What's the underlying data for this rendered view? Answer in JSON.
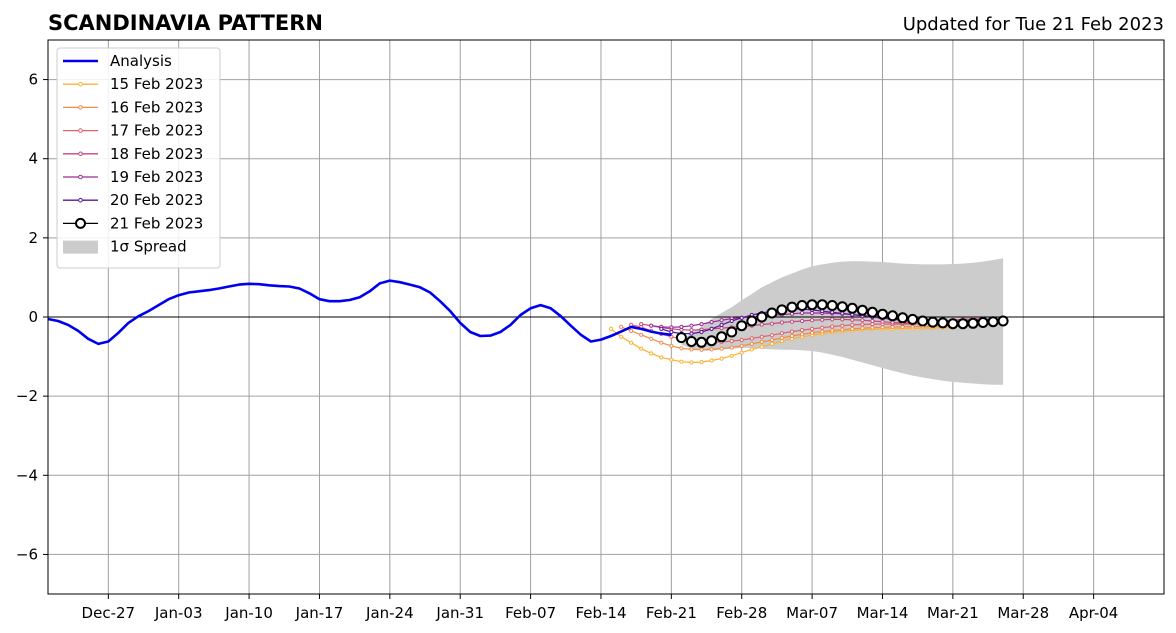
{
  "header": {
    "title": "SCANDINAVIA PATTERN",
    "updated": "Updated for Tue 21 Feb 2023"
  },
  "chart_data": {
    "type": "line",
    "x_axis": {
      "kind": "date",
      "range": [
        "2022-12-21",
        "2023-04-11"
      ],
      "tick_dates": [
        "2022-12-27",
        "2023-01-03",
        "2023-01-10",
        "2023-01-17",
        "2023-01-24",
        "2023-01-31",
        "2023-02-07",
        "2023-02-14",
        "2023-02-21",
        "2023-02-28",
        "2023-03-07",
        "2023-03-14",
        "2023-03-21",
        "2023-03-28",
        "2023-04-04"
      ],
      "tick_labels": [
        "Dec-27",
        "Jan-03",
        "Jan-10",
        "Jan-17",
        "Jan-24",
        "Jan-31",
        "Feb-07",
        "Feb-14",
        "Feb-21",
        "Feb-28",
        "Mar-07",
        "Mar-14",
        "Mar-21",
        "Mar-28",
        "Apr-04"
      ]
    },
    "y_axis": {
      "range": [
        -7,
        7
      ],
      "ticks": [
        -6,
        -4,
        -2,
        0,
        2,
        4,
        6
      ],
      "tick_labels": [
        "−6",
        "−4",
        "−2",
        "0",
        "2",
        "4",
        "6"
      ]
    },
    "grid": true,
    "legend_position": "top-left",
    "zero_line": true,
    "analysis": {
      "name": "Analysis",
      "color": "#0000ee",
      "start": "2022-12-21",
      "values": [
        -0.05,
        -0.1,
        -0.2,
        -0.35,
        -0.55,
        -0.68,
        -0.62,
        -0.4,
        -0.15,
        0.02,
        0.15,
        0.3,
        0.45,
        0.55,
        0.62,
        0.65,
        0.68,
        0.72,
        0.77,
        0.82,
        0.84,
        0.83,
        0.8,
        0.78,
        0.77,
        0.72,
        0.6,
        0.45,
        0.4,
        0.4,
        0.43,
        0.5,
        0.65,
        0.85,
        0.92,
        0.88,
        0.82,
        0.75,
        0.62,
        0.4,
        0.15,
        -0.15,
        -0.38,
        -0.48,
        -0.47,
        -0.38,
        -0.2,
        0.05,
        0.22,
        0.3,
        0.22,
        0.02,
        -0.22,
        -0.45,
        -0.62,
        -0.57,
        -0.48,
        -0.37,
        -0.25,
        -0.3,
        -0.37,
        -0.42,
        -0.45
      ]
    },
    "forecasts": [
      {
        "name": "15 Feb 2023",
        "color": "#f9b233",
        "start": "2023-02-15",
        "values": [
          -0.3,
          -0.5,
          -0.65,
          -0.8,
          -0.92,
          -1.02,
          -1.08,
          -1.13,
          -1.15,
          -1.14,
          -1.1,
          -1.05,
          -0.98,
          -0.9,
          -0.82,
          -0.75,
          -0.68,
          -0.61,
          -0.55,
          -0.5,
          -0.46,
          -0.42,
          -0.39,
          -0.36,
          -0.34,
          -0.32,
          -0.31,
          -0.3,
          -0.3,
          -0.29,
          -0.29,
          -0.28,
          -0.28,
          -0.27,
          -0.27
        ]
      },
      {
        "name": "16 Feb 2023",
        "color": "#f08c4a",
        "start": "2023-02-16",
        "values": [
          -0.25,
          -0.35,
          -0.45,
          -0.55,
          -0.65,
          -0.73,
          -0.79,
          -0.82,
          -0.83,
          -0.82,
          -0.8,
          -0.77,
          -0.73,
          -0.68,
          -0.63,
          -0.58,
          -0.53,
          -0.48,
          -0.44,
          -0.4,
          -0.37,
          -0.34,
          -0.32,
          -0.3,
          -0.28,
          -0.27,
          -0.26,
          -0.25,
          -0.25,
          -0.24,
          -0.24,
          -0.24,
          -0.23,
          -0.23,
          -0.23
        ]
      },
      {
        "name": "17 Feb 2023",
        "color": "#e0626a",
        "start": "2023-02-17",
        "values": [
          -0.2,
          -0.25,
          -0.35,
          -0.43,
          -0.5,
          -0.55,
          -0.6,
          -0.63,
          -0.64,
          -0.63,
          -0.61,
          -0.58,
          -0.54,
          -0.5,
          -0.46,
          -0.41,
          -0.37,
          -0.33,
          -0.3,
          -0.27,
          -0.24,
          -0.22,
          -0.2,
          -0.19,
          -0.18,
          -0.18,
          -0.18,
          -0.18,
          -0.18,
          -0.17,
          -0.17,
          -0.16,
          -0.15,
          -0.14,
          -0.14
        ]
      },
      {
        "name": "18 Feb 2023",
        "color": "#c2467e",
        "start": "2023-02-18",
        "values": [
          -0.18,
          -0.22,
          -0.27,
          -0.3,
          -0.32,
          -0.33,
          -0.32,
          -0.3,
          -0.28,
          -0.26,
          -0.24,
          -0.22,
          -0.19,
          -0.17,
          -0.14,
          -0.12,
          -0.1,
          -0.08,
          -0.07,
          -0.06,
          -0.06,
          -0.07,
          -0.08,
          -0.1,
          -0.12,
          -0.14,
          -0.15,
          -0.15,
          -0.14,
          -0.12,
          -0.1,
          -0.08,
          -0.06,
          -0.05,
          -0.05
        ]
      },
      {
        "name": "19 Feb 2023",
        "color": "#9b2a9a",
        "start": "2023-02-19",
        "values": [
          -0.22,
          -0.25,
          -0.26,
          -0.25,
          -0.22,
          -0.18,
          -0.13,
          -0.08,
          -0.04,
          -0.02,
          0.0,
          0.02,
          0.04,
          0.06,
          0.08,
          0.1,
          0.1,
          0.1,
          0.09,
          0.08,
          0.06,
          0.04,
          0.02,
          0.0,
          -0.03,
          -0.06,
          -0.09,
          -0.11,
          -0.12,
          -0.12,
          -0.11,
          -0.1,
          -0.08,
          -0.06,
          -0.05
        ]
      },
      {
        "name": "20 Feb 2023",
        "color": "#5a169a",
        "start": "2023-02-20",
        "values": [
          -0.3,
          -0.38,
          -0.42,
          -0.42,
          -0.38,
          -0.3,
          -0.2,
          -0.1,
          -0.02,
          0.05,
          0.1,
          0.15,
          0.18,
          0.2,
          0.2,
          0.18,
          0.15,
          0.12,
          0.09,
          0.06,
          0.03,
          0.0,
          -0.03,
          -0.06,
          -0.08,
          -0.1,
          -0.11,
          -0.12,
          -0.12,
          -0.11,
          -0.1,
          -0.09,
          -0.08,
          -0.08,
          -0.08
        ]
      },
      {
        "name": "21 Feb 2023",
        "color": "#000000",
        "start": "2023-02-22",
        "values": [
          -0.52,
          -0.62,
          -0.64,
          -0.6,
          -0.5,
          -0.38,
          -0.22,
          -0.1,
          0.0,
          0.1,
          0.18,
          0.25,
          0.29,
          0.31,
          0.31,
          0.29,
          0.26,
          0.22,
          0.17,
          0.12,
          0.07,
          0.03,
          -0.02,
          -0.06,
          -0.1,
          -0.13,
          -0.15,
          -0.17,
          -0.17,
          -0.16,
          -0.14,
          -0.12,
          -0.1
        ]
      }
    ],
    "spread": {
      "name": "1σ Spread",
      "color": "#cccccc",
      "start": "2023-02-22",
      "upper": [
        -0.6,
        -0.4,
        -0.25,
        -0.05,
        0.1,
        0.25,
        0.42,
        0.58,
        0.75,
        0.88,
        1.0,
        1.1,
        1.2,
        1.28,
        1.33,
        1.37,
        1.4,
        1.41,
        1.41,
        1.4,
        1.39,
        1.37,
        1.35,
        1.34,
        1.33,
        1.33,
        1.33,
        1.34,
        1.35,
        1.37,
        1.4,
        1.44,
        1.48
      ],
      "lower": [
        -0.7,
        -0.8,
        -0.85,
        -0.85,
        -0.82,
        -0.8,
        -0.78,
        -0.78,
        -0.8,
        -0.82,
        -0.83,
        -0.83,
        -0.84,
        -0.86,
        -0.9,
        -0.95,
        -1.01,
        -1.08,
        -1.15,
        -1.22,
        -1.29,
        -1.36,
        -1.42,
        -1.48,
        -1.53,
        -1.57,
        -1.61,
        -1.64,
        -1.66,
        -1.68,
        -1.7,
        -1.71,
        -1.71
      ]
    }
  }
}
